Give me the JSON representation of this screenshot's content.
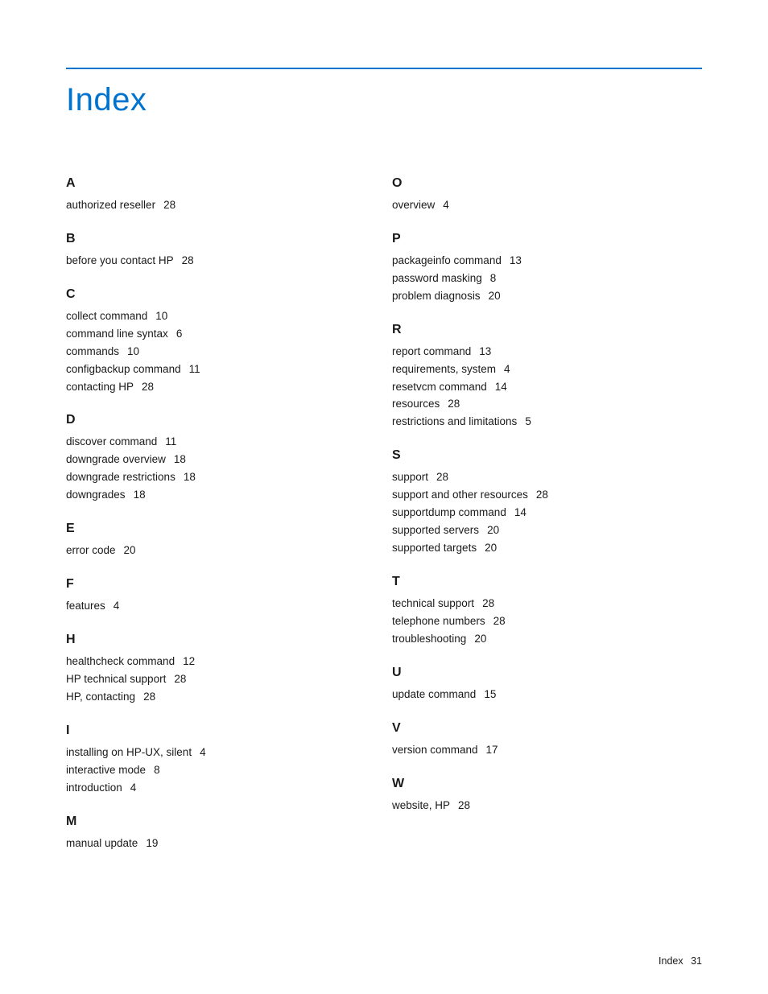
{
  "title": "Index",
  "rule_color": "#0073cf",
  "footer_label": "Index",
  "footer_page": "31",
  "columns": [
    [
      {
        "letter": "A",
        "entries": [
          {
            "term": "authorized reseller",
            "page": "28"
          }
        ]
      },
      {
        "letter": "B",
        "entries": [
          {
            "term": "before you contact HP",
            "page": "28"
          }
        ]
      },
      {
        "letter": "C",
        "entries": [
          {
            "term": "collect command",
            "page": "10"
          },
          {
            "term": "command line syntax",
            "page": "6"
          },
          {
            "term": "commands",
            "page": "10"
          },
          {
            "term": "configbackup command",
            "page": "11"
          },
          {
            "term": "contacting HP",
            "page": "28"
          }
        ]
      },
      {
        "letter": "D",
        "entries": [
          {
            "term": "discover command",
            "page": "11"
          },
          {
            "term": "downgrade overview",
            "page": "18"
          },
          {
            "term": "downgrade restrictions",
            "page": "18"
          },
          {
            "term": "downgrades",
            "page": "18"
          }
        ]
      },
      {
        "letter": "E",
        "entries": [
          {
            "term": "error code",
            "page": "20"
          }
        ]
      },
      {
        "letter": "F",
        "entries": [
          {
            "term": "features",
            "page": "4"
          }
        ]
      },
      {
        "letter": "H",
        "entries": [
          {
            "term": "healthcheck command",
            "page": "12"
          },
          {
            "term": "HP technical support",
            "page": "28"
          },
          {
            "term": "HP, contacting",
            "page": "28"
          }
        ]
      },
      {
        "letter": "I",
        "entries": [
          {
            "term": "installing on HP-UX, silent",
            "page": "4"
          },
          {
            "term": "interactive mode",
            "page": "8"
          },
          {
            "term": "introduction",
            "page": "4"
          }
        ]
      },
      {
        "letter": "M",
        "entries": [
          {
            "term": "manual update",
            "page": "19"
          }
        ]
      }
    ],
    [
      {
        "letter": "O",
        "entries": [
          {
            "term": "overview",
            "page": "4"
          }
        ]
      },
      {
        "letter": "P",
        "entries": [
          {
            "term": "packageinfo command",
            "page": "13"
          },
          {
            "term": "password masking",
            "page": "8"
          },
          {
            "term": "problem diagnosis",
            "page": "20"
          }
        ]
      },
      {
        "letter": "R",
        "entries": [
          {
            "term": "report command",
            "page": "13"
          },
          {
            "term": "requirements, system",
            "page": "4"
          },
          {
            "term": "resetvcm command",
            "page": "14"
          },
          {
            "term": "resources",
            "page": "28"
          },
          {
            "term": "restrictions and limitations",
            "page": "5"
          }
        ]
      },
      {
        "letter": "S",
        "entries": [
          {
            "term": "support",
            "page": "28"
          },
          {
            "term": "support and other resources",
            "page": "28"
          },
          {
            "term": "supportdump command",
            "page": "14"
          },
          {
            "term": "supported servers",
            "page": "20"
          },
          {
            "term": "supported targets",
            "page": "20"
          }
        ]
      },
      {
        "letter": "T",
        "entries": [
          {
            "term": "technical support",
            "page": "28"
          },
          {
            "term": "telephone numbers",
            "page": "28"
          },
          {
            "term": "troubleshooting",
            "page": "20"
          }
        ]
      },
      {
        "letter": "U",
        "entries": [
          {
            "term": "update command",
            "page": "15"
          }
        ]
      },
      {
        "letter": "V",
        "entries": [
          {
            "term": "version command",
            "page": "17"
          }
        ]
      },
      {
        "letter": "W",
        "entries": [
          {
            "term": "website, HP",
            "page": "28"
          }
        ]
      }
    ]
  ]
}
